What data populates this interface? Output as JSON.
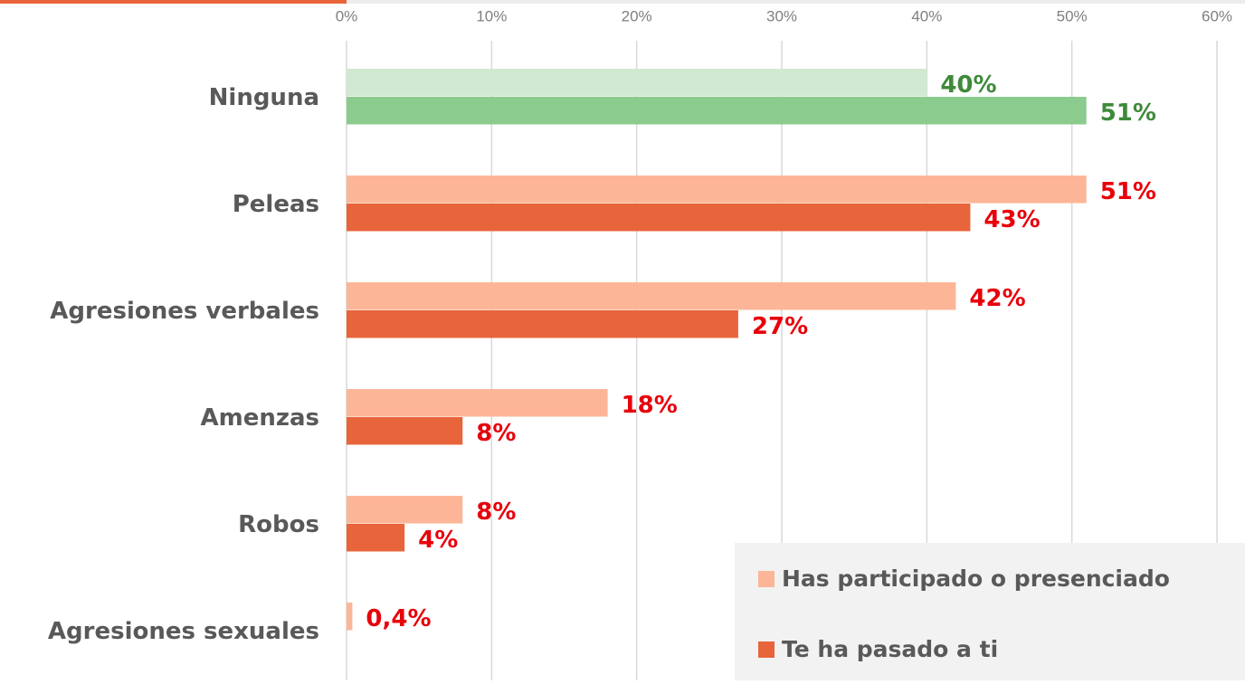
{
  "chart_data": {
    "type": "hbar",
    "categories": [
      "Ninguna",
      "Peleas",
      "Agresiones verbales",
      "Amenzas",
      "Robos",
      "Agresiones sexuales"
    ],
    "series": [
      {
        "name": "Has participado o presenciado",
        "color": "#fcb697",
        "point_colors": [
          "#d0e9d0",
          "#fcb697",
          "#fcb697",
          "#fcb697",
          "#fcb697",
          "#fcb697"
        ],
        "values": [
          40,
          51,
          42,
          18,
          8,
          0.4
        ],
        "value_labels": [
          "40%",
          "51%",
          "42%",
          "18%",
          "8%",
          "0,4%"
        ]
      },
      {
        "name": "Te ha pasado a ti",
        "color": "#e8643a",
        "point_colors": [
          "#8bcb8e",
          "#e8643a",
          "#e8643a",
          "#e8643a",
          "#e8643a",
          "#e8643a"
        ],
        "values": [
          51,
          43,
          27,
          8,
          4,
          null
        ],
        "value_labels": [
          "51%",
          "43%",
          "27%",
          "8%",
          "4%",
          null
        ]
      }
    ],
    "label_colors": [
      "#3f8a3a",
      "#e8000b",
      "#e8000b",
      "#e8000b",
      "#e8000b",
      "#e8000b"
    ],
    "xlim": [
      0,
      60
    ],
    "xticks": [
      {
        "value": 0,
        "label": "0%"
      },
      {
        "value": 10,
        "label": "10%"
      },
      {
        "value": 20,
        "label": "20%"
      },
      {
        "value": 30,
        "label": "30%"
      },
      {
        "value": 40,
        "label": "40%"
      },
      {
        "value": 50,
        "label": "50%"
      },
      {
        "value": 60,
        "label": "60%"
      }
    ],
    "grid": true,
    "legend": "bottom-right"
  }
}
